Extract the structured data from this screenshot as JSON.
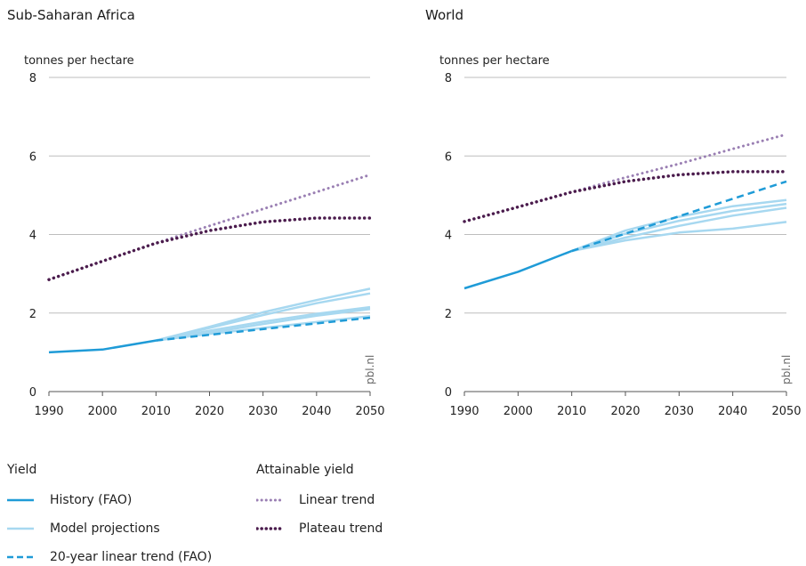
{
  "chart_data": [
    {
      "type": "line",
      "title": "Sub-Saharan Africa",
      "ylabel": "tonnes per hectare",
      "credit": "pbl.nl",
      "xlim": [
        1990,
        2050
      ],
      "ylim": [
        0,
        8
      ],
      "xticks": [
        1990,
        2000,
        2010,
        2020,
        2030,
        2040,
        2050
      ],
      "yticks": [
        0,
        2,
        4,
        6,
        8
      ],
      "grid": true,
      "series": [
        {
          "name": "History (FAO)",
          "style": "solid",
          "color": "#1f9bd7",
          "x": [
            1990,
            2000,
            2010
          ],
          "y": [
            1.0,
            1.07,
            1.3
          ]
        },
        {
          "name": "Model projections",
          "style": "solid",
          "color": "#a7d8f0",
          "x": [
            2010,
            2020,
            2030,
            2040,
            2050
          ],
          "y": [
            1.3,
            1.65,
            2.02,
            2.33,
            2.62
          ]
        },
        {
          "name": "Model projections",
          "style": "solid",
          "color": "#a7d8f0",
          "x": [
            2010,
            2020,
            2030,
            2040,
            2050
          ],
          "y": [
            1.3,
            1.62,
            1.95,
            2.25,
            2.5
          ]
        },
        {
          "name": "Model projections",
          "style": "solid",
          "color": "#a7d8f0",
          "x": [
            2010,
            2020,
            2030,
            2040,
            2050
          ],
          "y": [
            1.3,
            1.55,
            1.78,
            1.98,
            2.15
          ]
        },
        {
          "name": "Model projections",
          "style": "solid",
          "color": "#a7d8f0",
          "x": [
            2010,
            2020,
            2030,
            2040,
            2050
          ],
          "y": [
            1.3,
            1.5,
            1.72,
            1.93,
            2.1
          ]
        },
        {
          "name": "Model projections",
          "style": "solid",
          "color": "#a7d8f0",
          "x": [
            2010,
            2020,
            2030,
            2040,
            2050
          ],
          "y": [
            1.3,
            1.47,
            1.62,
            1.77,
            1.92
          ]
        },
        {
          "name": "20-year linear trend (FAO)",
          "style": "dashed",
          "color": "#1f9bd7",
          "x": [
            2010,
            2050
          ],
          "y": [
            1.3,
            1.88
          ]
        },
        {
          "name": "Linear trend",
          "style": "dotted",
          "color": "#9a7fb3",
          "x": [
            1990,
            2000,
            2010,
            2020,
            2030,
            2040,
            2050
          ],
          "y": [
            2.85,
            3.32,
            3.78,
            4.22,
            4.65,
            5.08,
            5.52
          ]
        },
        {
          "name": "Plateau trend",
          "style": "dotted",
          "color": "#4b1c4d",
          "x": [
            1990,
            2000,
            2010,
            2020,
            2030,
            2040,
            2050
          ],
          "y": [
            2.85,
            3.32,
            3.78,
            4.1,
            4.32,
            4.42,
            4.42
          ]
        }
      ]
    },
    {
      "type": "line",
      "title": "World",
      "ylabel": "tonnes per hectare",
      "credit": "pbl.nl",
      "xlim": [
        1990,
        2050
      ],
      "ylim": [
        0,
        8
      ],
      "xticks": [
        1990,
        2000,
        2010,
        2020,
        2030,
        2040,
        2050
      ],
      "yticks": [
        0,
        2,
        4,
        6,
        8
      ],
      "grid": true,
      "series": [
        {
          "name": "History (FAO)",
          "style": "solid",
          "color": "#1f9bd7",
          "x": [
            1990,
            2000,
            2010
          ],
          "y": [
            2.63,
            3.05,
            3.58
          ]
        },
        {
          "name": "Model projections",
          "style": "solid",
          "color": "#a7d8f0",
          "x": [
            2010,
            2020,
            2030,
            2040,
            2050
          ],
          "y": [
            3.58,
            4.1,
            4.45,
            4.72,
            4.88
          ]
        },
        {
          "name": "Model projections",
          "style": "solid",
          "color": "#a7d8f0",
          "x": [
            2010,
            2020,
            2030,
            2040,
            2050
          ],
          "y": [
            3.58,
            4.02,
            4.35,
            4.6,
            4.78
          ]
        },
        {
          "name": "Model projections",
          "style": "solid",
          "color": "#a7d8f0",
          "x": [
            2010,
            2020,
            2030,
            2040,
            2050
          ],
          "y": [
            3.58,
            3.92,
            4.22,
            4.48,
            4.68
          ]
        },
        {
          "name": "Model projections",
          "style": "solid",
          "color": "#a7d8f0",
          "x": [
            2010,
            2020,
            2030,
            2040,
            2050
          ],
          "y": [
            3.58,
            3.85,
            4.05,
            4.15,
            4.32
          ]
        },
        {
          "name": "20-year linear trend (FAO)",
          "style": "dashed",
          "color": "#1f9bd7",
          "x": [
            2010,
            2050
          ],
          "y": [
            3.58,
            5.35
          ]
        },
        {
          "name": "Linear trend",
          "style": "dotted",
          "color": "#9a7fb3",
          "x": [
            1990,
            2000,
            2010,
            2020,
            2030,
            2040,
            2050
          ],
          "y": [
            4.33,
            4.7,
            5.08,
            5.45,
            5.8,
            6.18,
            6.55
          ]
        },
        {
          "name": "Plateau trend",
          "style": "dotted",
          "color": "#4b1c4d",
          "x": [
            1990,
            2000,
            2010,
            2020,
            2030,
            2040,
            2050
          ],
          "y": [
            4.33,
            4.7,
            5.08,
            5.35,
            5.52,
            5.6,
            5.6
          ]
        }
      ]
    }
  ],
  "legend": {
    "yield_heading": "Yield",
    "attainable_heading": "Attainable yield",
    "items": [
      {
        "label": "History (FAO)",
        "style": "solid",
        "color": "#1f9bd7"
      },
      {
        "label": "Model projections",
        "style": "solid",
        "color": "#a7d8f0"
      },
      {
        "label": "20-year linear trend (FAO)",
        "style": "dashed",
        "color": "#1f9bd7"
      },
      {
        "label": "Linear trend",
        "style": "dotted",
        "color": "#9a7fb3"
      },
      {
        "label": "Plateau trend",
        "style": "dotted",
        "color": "#4b1c4d"
      }
    ]
  }
}
